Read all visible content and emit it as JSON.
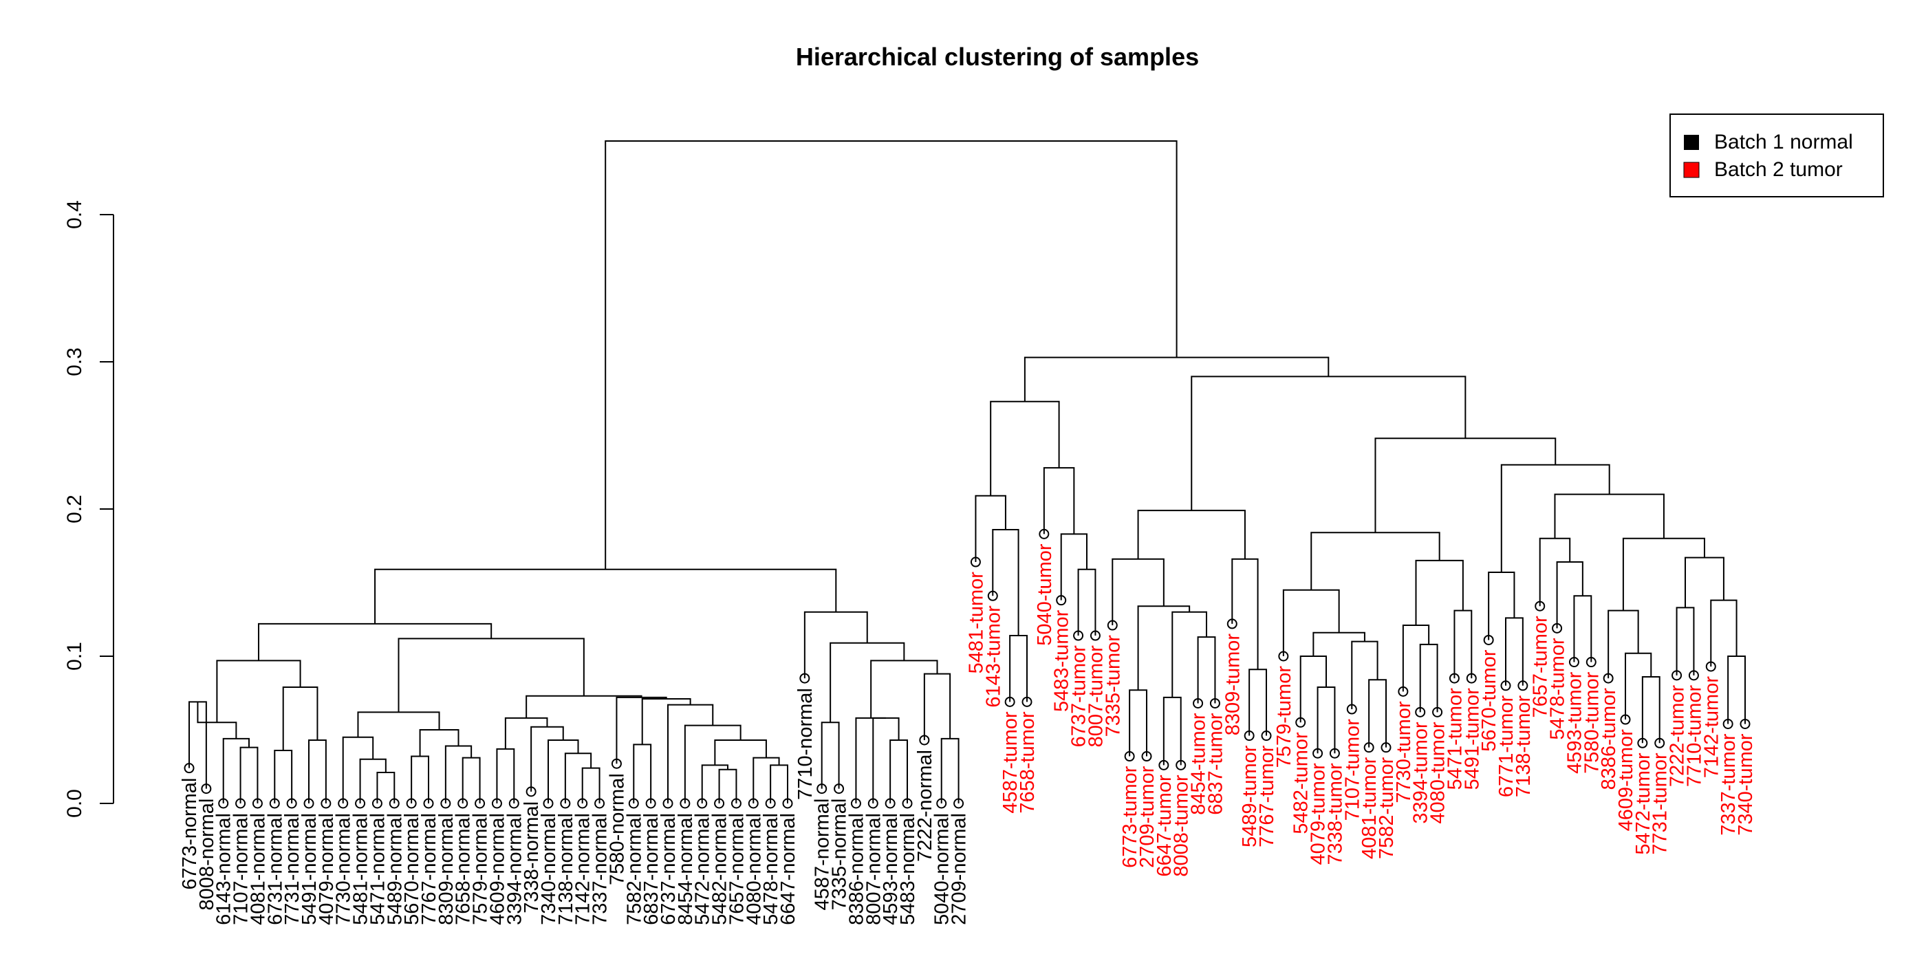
{
  "chart_data": {
    "type": "dendrogram",
    "title": "Hierarchical clustering of samples",
    "ylabel": "",
    "xlabel": "",
    "ylim": [
      0,
      0.45
    ],
    "yticks": [
      0.0,
      0.1,
      0.2,
      0.3,
      0.4
    ],
    "ytick_labels": [
      "0.0",
      "0.1",
      "0.2",
      "0.3",
      "0.4"
    ],
    "legend": {
      "position": "top-right",
      "entries": [
        {
          "label": "Batch 1 normal",
          "color": "#000000"
        },
        {
          "label": "Batch 2 tumor",
          "color": "#ff0000"
        }
      ]
    },
    "groups": {
      "normal": "#000000",
      "tumor": "#ff0000"
    },
    "leaves": [
      {
        "label": "6773-normal",
        "group": "normal",
        "tip": 0.024
      },
      {
        "label": "8008-normal",
        "group": "normal",
        "tip": 0.01
      },
      {
        "label": "6143-normal",
        "group": "normal",
        "tip": 0.0
      },
      {
        "label": "7107-normal",
        "group": "normal",
        "tip": 0.0
      },
      {
        "label": "4081-normal",
        "group": "normal",
        "tip": 0.0
      },
      {
        "label": "6731-normal",
        "group": "normal",
        "tip": 0.0
      },
      {
        "label": "7731-normal",
        "group": "normal",
        "tip": 0.0
      },
      {
        "label": "5491-normal",
        "group": "normal",
        "tip": 0.0
      },
      {
        "label": "4079-normal",
        "group": "normal",
        "tip": 0.0
      },
      {
        "label": "7730-normal",
        "group": "normal",
        "tip": 0.0
      },
      {
        "label": "5481-normal",
        "group": "normal",
        "tip": 0.0
      },
      {
        "label": "5471-normal",
        "group": "normal",
        "tip": 0.0
      },
      {
        "label": "5489-normal",
        "group": "normal",
        "tip": 0.0
      },
      {
        "label": "5670-normal",
        "group": "normal",
        "tip": 0.0
      },
      {
        "label": "7767-normal",
        "group": "normal",
        "tip": 0.0
      },
      {
        "label": "8309-normal",
        "group": "normal",
        "tip": 0.0
      },
      {
        "label": "7658-normal",
        "group": "normal",
        "tip": 0.0
      },
      {
        "label": "7579-normal",
        "group": "normal",
        "tip": 0.0
      },
      {
        "label": "4609-normal",
        "group": "normal",
        "tip": 0.0
      },
      {
        "label": "3394-normal",
        "group": "normal",
        "tip": 0.0
      },
      {
        "label": "7338-normal",
        "group": "normal",
        "tip": 0.008
      },
      {
        "label": "7340-normal",
        "group": "normal",
        "tip": 0.0
      },
      {
        "label": "7138-normal",
        "group": "normal",
        "tip": 0.0
      },
      {
        "label": "7142-normal",
        "group": "normal",
        "tip": 0.0
      },
      {
        "label": "7337-normal",
        "group": "normal",
        "tip": 0.0
      },
      {
        "label": "7580-normal",
        "group": "normal",
        "tip": 0.027
      },
      {
        "label": "7582-normal",
        "group": "normal",
        "tip": 0.0
      },
      {
        "label": "6837-normal",
        "group": "normal",
        "tip": 0.0
      },
      {
        "label": "6737-normal",
        "group": "normal",
        "tip": 0.0
      },
      {
        "label": "8454-normal",
        "group": "normal",
        "tip": 0.0
      },
      {
        "label": "5472-normal",
        "group": "normal",
        "tip": 0.0
      },
      {
        "label": "5482-normal",
        "group": "normal",
        "tip": 0.0
      },
      {
        "label": "7657-normal",
        "group": "normal",
        "tip": 0.0
      },
      {
        "label": "4080-normal",
        "group": "normal",
        "tip": 0.0
      },
      {
        "label": "5478-normal",
        "group": "normal",
        "tip": 0.0
      },
      {
        "label": "6647-normal",
        "group": "normal",
        "tip": 0.0
      },
      {
        "label": "7710-normal",
        "group": "normal",
        "tip": 0.085
      },
      {
        "label": "4587-normal",
        "group": "normal",
        "tip": 0.01
      },
      {
        "label": "7335-normal",
        "group": "normal",
        "tip": 0.01
      },
      {
        "label": "8386-normal",
        "group": "normal",
        "tip": 0.0
      },
      {
        "label": "8007-normal",
        "group": "normal",
        "tip": 0.0
      },
      {
        "label": "4593-normal",
        "group": "normal",
        "tip": 0.0
      },
      {
        "label": "5483-normal",
        "group": "normal",
        "tip": 0.0
      },
      {
        "label": "7222-normal",
        "group": "normal",
        "tip": 0.043
      },
      {
        "label": "5040-normal",
        "group": "normal",
        "tip": 0.0
      },
      {
        "label": "2709-normal",
        "group": "normal",
        "tip": 0.0
      },
      {
        "label": "5481-tumor",
        "group": "tumor",
        "tip": 0.164
      },
      {
        "label": "6143-tumor",
        "group": "tumor",
        "tip": 0.141
      },
      {
        "label": "4587-tumor",
        "group": "tumor",
        "tip": 0.069
      },
      {
        "label": "7658-tumor",
        "group": "tumor",
        "tip": 0.069
      },
      {
        "label": "5040-tumor",
        "group": "tumor",
        "tip": 0.183
      },
      {
        "label": "5483-tumor",
        "group": "tumor",
        "tip": 0.138
      },
      {
        "label": "6737-tumor",
        "group": "tumor",
        "tip": 0.114
      },
      {
        "label": "8007-tumor",
        "group": "tumor",
        "tip": 0.114
      },
      {
        "label": "7335-tumor",
        "group": "tumor",
        "tip": 0.121
      },
      {
        "label": "6773-tumor",
        "group": "tumor",
        "tip": 0.032
      },
      {
        "label": "2709-tumor",
        "group": "tumor",
        "tip": 0.032
      },
      {
        "label": "6647-tumor",
        "group": "tumor",
        "tip": 0.026
      },
      {
        "label": "8008-tumor",
        "group": "tumor",
        "tip": 0.026
      },
      {
        "label": "8454-tumor",
        "group": "tumor",
        "tip": 0.068
      },
      {
        "label": "6837-tumor",
        "group": "tumor",
        "tip": 0.068
      },
      {
        "label": "8309-tumor",
        "group": "tumor",
        "tip": 0.122
      },
      {
        "label": "5489-tumor",
        "group": "tumor",
        "tip": 0.046
      },
      {
        "label": "7767-tumor",
        "group": "tumor",
        "tip": 0.046
      },
      {
        "label": "7579-tumor",
        "group": "tumor",
        "tip": 0.1
      },
      {
        "label": "5482-tumor",
        "group": "tumor",
        "tip": 0.055
      },
      {
        "label": "4079-tumor",
        "group": "tumor",
        "tip": 0.034
      },
      {
        "label": "7338-tumor",
        "group": "tumor",
        "tip": 0.034
      },
      {
        "label": "7107-tumor",
        "group": "tumor",
        "tip": 0.064
      },
      {
        "label": "4081-tumor",
        "group": "tumor",
        "tip": 0.038
      },
      {
        "label": "7582-tumor",
        "group": "tumor",
        "tip": 0.038
      },
      {
        "label": "7730-tumor",
        "group": "tumor",
        "tip": 0.076
      },
      {
        "label": "3394-tumor",
        "group": "tumor",
        "tip": 0.062
      },
      {
        "label": "4080-tumor",
        "group": "tumor",
        "tip": 0.062
      },
      {
        "label": "5471-tumor",
        "group": "tumor",
        "tip": 0.085
      },
      {
        "label": "5491-tumor",
        "group": "tumor",
        "tip": 0.085
      },
      {
        "label": "5670-tumor",
        "group": "tumor",
        "tip": 0.111
      },
      {
        "label": "6771-tumor",
        "group": "tumor",
        "tip": 0.08
      },
      {
        "label": "7138-tumor",
        "group": "tumor",
        "tip": 0.08
      },
      {
        "label": "7657-tumor",
        "group": "tumor",
        "tip": 0.134
      },
      {
        "label": "5478-tumor",
        "group": "tumor",
        "tip": 0.119
      },
      {
        "label": "4593-tumor",
        "group": "tumor",
        "tip": 0.096
      },
      {
        "label": "7580-tumor",
        "group": "tumor",
        "tip": 0.096
      },
      {
        "label": "8386-tumor",
        "group": "tumor",
        "tip": 0.085
      },
      {
        "label": "4609-tumor",
        "group": "tumor",
        "tip": 0.057
      },
      {
        "label": "5472-tumor",
        "group": "tumor",
        "tip": 0.041
      },
      {
        "label": "7731-tumor",
        "group": "tumor",
        "tip": 0.041
      },
      {
        "label": "7222-tumor",
        "group": "tumor",
        "tip": 0.087
      },
      {
        "label": "7710-tumor",
        "group": "tumor",
        "tip": 0.087
      },
      {
        "label": "7142-tumor",
        "group": "tumor",
        "tip": 0.093
      },
      {
        "label": "7337-tumor",
        "group": "tumor",
        "tip": 0.054
      },
      {
        "label": "7340-tumor",
        "group": "tumor",
        "tip": 0.054
      }
    ],
    "merges": [
      {
        "l": 0,
        "r": 0,
        "left": "6773-normal",
        "right": "8008-normal",
        "h": 0.069
      },
      {
        "left": "7107-normal",
        "right": "4081-normal",
        "h": 0.038
      },
      {
        "left": "6143-normal",
        "right": "#2",
        "h": 0.044
      },
      {
        "left": "#1",
        "right": "#3",
        "h": 0.055
      },
      {
        "left": "6731-normal",
        "right": "7731-normal",
        "h": 0.036
      },
      {
        "left": "5491-normal",
        "right": "4079-normal",
        "h": 0.043
      },
      {
        "left": "#5",
        "right": "#6",
        "h": 0.079
      },
      {
        "left": "#4",
        "right": "#7",
        "h": 0.097
      },
      {
        "left": "5471-normal",
        "right": "5489-normal",
        "h": 0.021
      },
      {
        "left": "5481-normal",
        "right": "#9",
        "h": 0.03
      },
      {
        "left": "7730-normal",
        "right": "#10",
        "h": 0.045
      },
      {
        "left": "5670-normal",
        "right": "7767-normal",
        "h": 0.032
      },
      {
        "left": "7658-normal",
        "right": "7579-normal",
        "h": 0.031
      },
      {
        "left": "8309-normal",
        "right": "#13",
        "h": 0.039
      },
      {
        "left": "#12",
        "right": "#14",
        "h": 0.05
      },
      {
        "left": "#11",
        "right": "#15",
        "h": 0.062
      },
      {
        "left": "4609-normal",
        "right": "3394-normal",
        "h": 0.037
      },
      {
        "left": "7142-normal",
        "right": "7337-normal",
        "h": 0.024
      },
      {
        "left": "7138-normal",
        "right": "#18",
        "h": 0.034
      },
      {
        "left": "7340-normal",
        "right": "#19",
        "h": 0.043
      },
      {
        "left": "7338-normal",
        "right": "#20",
        "h": 0.052
      },
      {
        "left": "#17",
        "right": "#21",
        "h": 0.058
      },
      {
        "left": "7582-normal",
        "right": "6837-normal",
        "h": 0.04
      },
      {
        "left": "5482-normal",
        "right": "7657-normal",
        "h": 0.023
      },
      {
        "left": "5472-normal",
        "right": "#24",
        "h": 0.026
      },
      {
        "left": "5478-normal",
        "right": "6647-normal",
        "h": 0.026
      },
      {
        "left": "4080-normal",
        "right": "#26",
        "h": 0.031
      },
      {
        "left": "#25",
        "right": "#27",
        "h": 0.043
      },
      {
        "left": "8454-normal",
        "right": "#28",
        "h": 0.053
      },
      {
        "left": "6737-normal",
        "right": "#29",
        "h": 0.067
      },
      {
        "left": "#23",
        "right": "#30",
        "h": 0.071
      },
      {
        "left": "7580-normal",
        "right": "#31",
        "h": 0.072
      },
      {
        "left": "#22",
        "right": "#32",
        "h": 0.073
      },
      {
        "left": "#16",
        "right": "#33",
        "h": 0.112
      },
      {
        "left": "#8",
        "right": "#34",
        "h": 0.122
      },
      {
        "left": "4587-normal",
        "right": "7335-normal",
        "h": 0.055
      },
      {
        "left": "4593-normal",
        "right": "5483-normal",
        "h": 0.043
      },
      {
        "left": "8007-normal",
        "right": "#37",
        "h": 0.058
      },
      {
        "left": "8386-normal",
        "right": "#38",
        "h": 0.058
      },
      {
        "left": "5040-normal",
        "right": "2709-normal",
        "h": 0.044
      },
      {
        "left": "7222-normal",
        "right": "#40",
        "h": 0.088
      },
      {
        "left": "#39",
        "right": "#41",
        "h": 0.097
      },
      {
        "left": "#36",
        "right": "#42",
        "h": 0.109
      },
      {
        "left": "7710-normal",
        "right": "#43",
        "h": 0.13
      },
      {
        "left": "#35",
        "right": "#44",
        "h": 0.159
      },
      {
        "left": "4587-tumor",
        "right": "7658-tumor",
        "h": 0.114
      },
      {
        "left": "6143-tumor",
        "right": "#46",
        "h": 0.186
      },
      {
        "left": "5481-tumor",
        "right": "#47",
        "h": 0.209
      },
      {
        "left": "6737-tumor",
        "right": "8007-tumor",
        "h": 0.159
      },
      {
        "left": "5483-tumor",
        "right": "#49",
        "h": 0.183
      },
      {
        "left": "5040-tumor",
        "right": "#50",
        "h": 0.228
      },
      {
        "left": "#48",
        "right": "#51",
        "h": 0.273
      },
      {
        "left": "6773-tumor",
        "right": "2709-tumor",
        "h": 0.077
      },
      {
        "left": "6647-tumor",
        "right": "8008-tumor",
        "h": 0.072
      },
      {
        "left": "8454-tumor",
        "right": "6837-tumor",
        "h": 0.113
      },
      {
        "left": "#54",
        "right": "#55",
        "h": 0.13
      },
      {
        "left": "#53",
        "right": "#56",
        "h": 0.134
      },
      {
        "left": "7335-tumor",
        "right": "#57",
        "h": 0.166
      },
      {
        "left": "5489-tumor",
        "right": "7767-tumor",
        "h": 0.091
      },
      {
        "left": "8309-tumor",
        "right": "#59",
        "h": 0.166
      },
      {
        "left": "#58",
        "right": "#60",
        "h": 0.199
      },
      {
        "left": "4079-tumor",
        "right": "7338-tumor",
        "h": 0.079
      },
      {
        "left": "5482-tumor",
        "right": "#62",
        "h": 0.1
      },
      {
        "left": "4081-tumor",
        "right": "7582-tumor",
        "h": 0.084
      },
      {
        "left": "7107-tumor",
        "right": "#64",
        "h": 0.11
      },
      {
        "left": "#63",
        "right": "#65",
        "h": 0.116
      },
      {
        "left": "7579-tumor",
        "right": "#66",
        "h": 0.145
      },
      {
        "left": "3394-tumor",
        "right": "4080-tumor",
        "h": 0.108
      },
      {
        "left": "7730-tumor",
        "right": "#68",
        "h": 0.121
      },
      {
        "left": "5471-tumor",
        "right": "5491-tumor",
        "h": 0.131
      },
      {
        "left": "#69",
        "right": "#70",
        "h": 0.165
      },
      {
        "left": "#67",
        "right": "#71",
        "h": 0.184
      },
      {
        "left": "6771-tumor",
        "right": "7138-tumor",
        "h": 0.126
      },
      {
        "left": "5670-tumor",
        "right": "#73",
        "h": 0.157
      },
      {
        "left": "4593-tumor",
        "right": "7580-tumor",
        "h": 0.141
      },
      {
        "left": "5478-tumor",
        "right": "#75",
        "h": 0.164
      },
      {
        "left": "7657-tumor",
        "right": "#76",
        "h": 0.18
      },
      {
        "left": "5472-tumor",
        "right": "7731-tumor",
        "h": 0.086
      },
      {
        "left": "4609-tumor",
        "right": "#78",
        "h": 0.102
      },
      {
        "left": "8386-tumor",
        "right": "#79",
        "h": 0.131
      },
      {
        "left": "7222-tumor",
        "right": "7710-tumor",
        "h": 0.133
      },
      {
        "left": "7337-tumor",
        "right": "7340-tumor",
        "h": 0.1
      },
      {
        "left": "7142-tumor",
        "right": "#82",
        "h": 0.138
      },
      {
        "left": "#81",
        "right": "#83",
        "h": 0.167
      },
      {
        "left": "#80",
        "right": "#84",
        "h": 0.18
      },
      {
        "left": "#77",
        "right": "#85",
        "h": 0.21
      },
      {
        "left": "#74",
        "right": "#86",
        "h": 0.23
      },
      {
        "left": "#72",
        "right": "#87",
        "h": 0.248
      },
      {
        "left": "#61",
        "right": "#88",
        "h": 0.29
      },
      {
        "left": "#52",
        "right": "#89",
        "h": 0.303
      },
      {
        "left": "#45",
        "right": "#90",
        "h": 0.45
      }
    ]
  }
}
